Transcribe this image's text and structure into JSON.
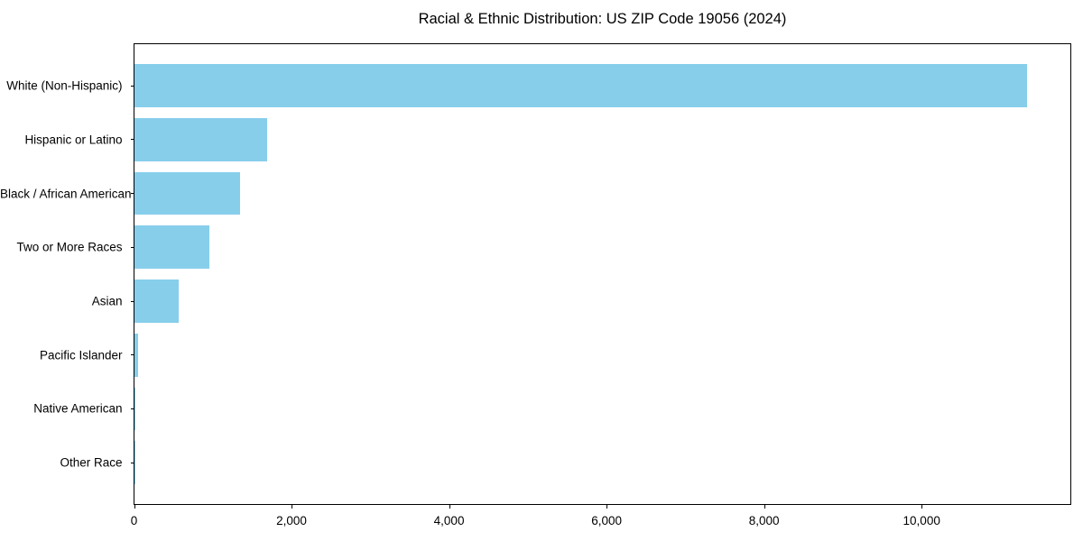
{
  "chart_data": {
    "type": "bar",
    "orientation": "horizontal",
    "title": "Racial & Ethnic Distribution: US ZIP Code 19056 (2024)",
    "categories": [
      "White (Non-Hispanic)",
      "Hispanic or Latino",
      "Black / African American",
      "Two or More Races",
      "Asian",
      "Pacific Islander",
      "Native American",
      "Other Race"
    ],
    "values": [
      11335,
      1690,
      1335,
      955,
      565,
      50,
      12,
      5
    ],
    "title_position": "top-center",
    "xlabel": "",
    "ylabel": "",
    "xlim": [
      0,
      11900
    ],
    "x_ticks": [
      0,
      2000,
      4000,
      6000,
      8000,
      10000
    ],
    "x_tick_labels": [
      "0",
      "2,000",
      "4,000",
      "6,000",
      "8,000",
      "10,000"
    ],
    "bar_color": "#87CEEB",
    "axis_color": "#000000",
    "text_color": "#000000",
    "background_color": "#ffffff",
    "grid": false,
    "legend": null
  }
}
